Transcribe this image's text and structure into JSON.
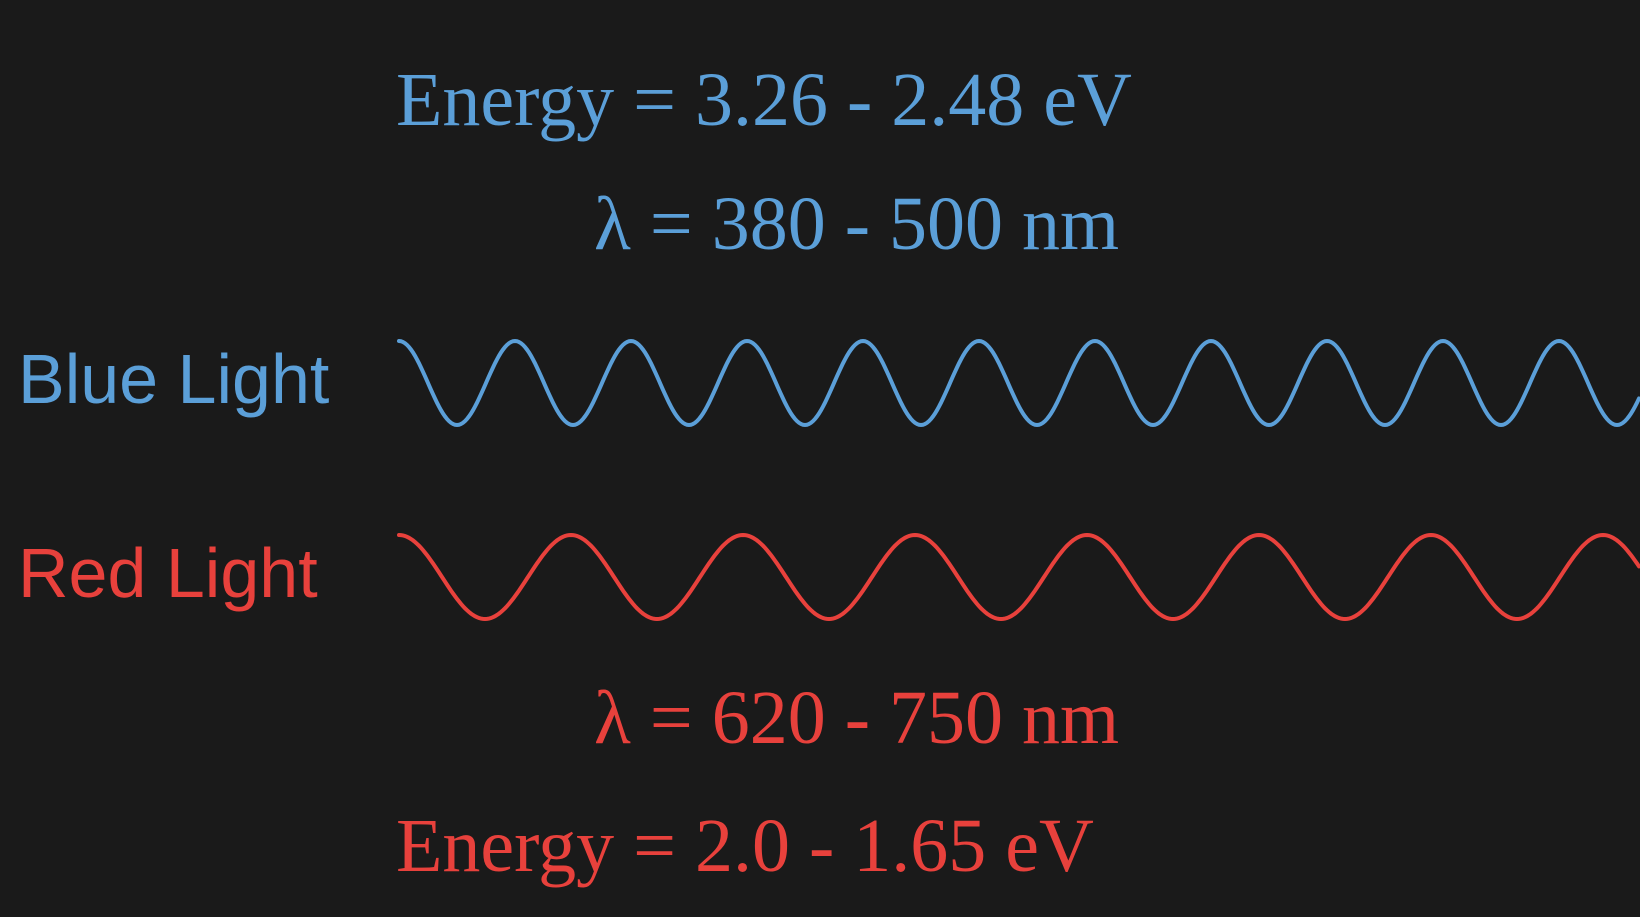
{
  "blue": {
    "energy": "Energy = 3.26 - 2.48 eV",
    "wavelength": "λ = 380 - 500 nm",
    "label": "Blue Light",
    "color": "#5b9fd8"
  },
  "red": {
    "energy": "Energy = 2.0 - 1.65 eV",
    "wavelength": "λ = 620 - 750 nm",
    "label": "Red Light",
    "color": "#e8413c"
  },
  "background": "#1a1a1a"
}
